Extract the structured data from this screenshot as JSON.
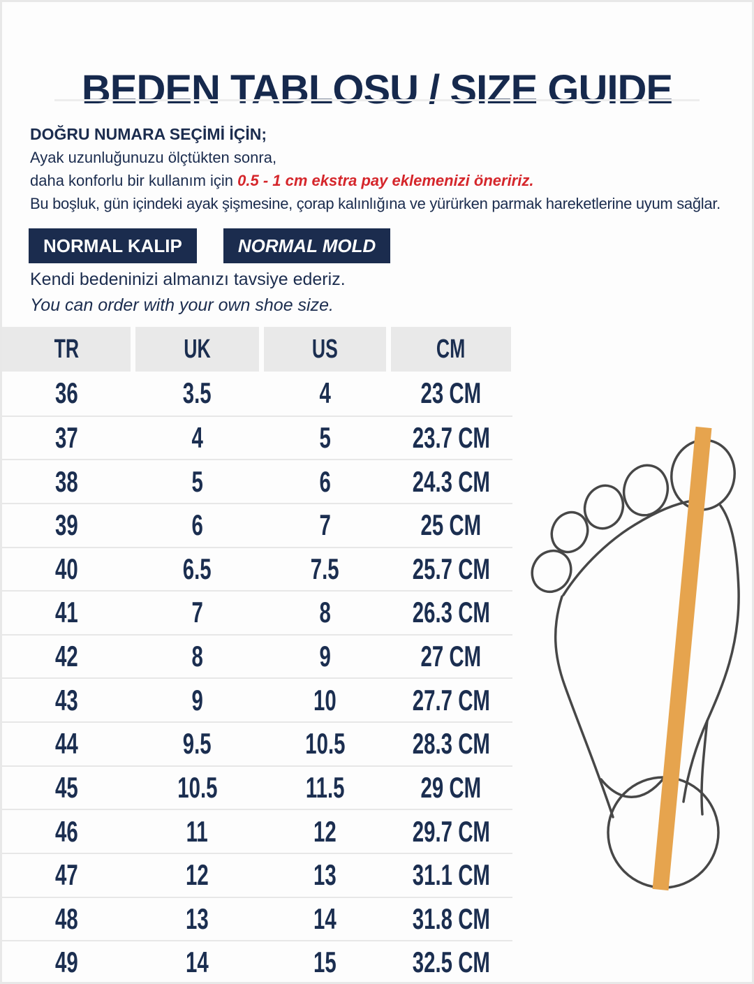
{
  "title": "BEDEN TABLOSU / SIZE GUIDE",
  "intro": {
    "heading": "DOĞRU NUMARA SEÇİMİ İÇİN;",
    "line1": "Ayak uzunluğunuzu ölçtükten sonra,",
    "line2_prefix": "daha konforlu bir kullanım için ",
    "line2_highlight": "0.5 - 1 cm ekstra pay eklemenizi öneririz.",
    "line3": "Bu boşluk, gün içindeki ayak şişmesine, çorap kalınlığına ve yürürken parmak hareketlerine uyum sağlar."
  },
  "fit_badges": {
    "tr": "NORMAL KALIP",
    "en": "NORMAL MOLD"
  },
  "advice": {
    "tr": "Kendi bedeninizi almanızı tavsiye ederiz.",
    "en": "You can order with your own shoe size."
  },
  "size_table": {
    "headers": [
      "TR",
      "UK",
      "US",
      "CM"
    ],
    "rows": [
      [
        "36",
        "3.5",
        "4",
        "23 CM"
      ],
      [
        "37",
        "4",
        "5",
        "23.7 CM"
      ],
      [
        "38",
        "5",
        "6",
        "24.3 CM"
      ],
      [
        "39",
        "6",
        "7",
        "25 CM"
      ],
      [
        "40",
        "6.5",
        "7.5",
        "25.7 CM"
      ],
      [
        "41",
        "7",
        "8",
        "26.3 CM"
      ],
      [
        "42",
        "8",
        "9",
        "27 CM"
      ],
      [
        "43",
        "9",
        "10",
        "27.7 CM"
      ],
      [
        "44",
        "9.5",
        "10.5",
        "28.3 CM"
      ],
      [
        "45",
        "10.5",
        "11.5",
        "29 CM"
      ],
      [
        "46",
        "11",
        "12",
        "29.7 CM"
      ],
      [
        "47",
        "12",
        "13",
        "31.1 CM"
      ],
      [
        "48",
        "13",
        "14",
        "31.8 CM"
      ],
      [
        "49",
        "14",
        "15",
        "32.5 CM"
      ]
    ]
  },
  "illustration": {
    "name": "foot-outline-with-measuring-stick",
    "outline_color": "#474747",
    "stick_color": "#e6a44e"
  },
  "colors": {
    "navy": "#1b2c4e",
    "red": "#d5262b",
    "header_cell_gray": "#e9e9e9",
    "row_divider_gray": "#e7e7e7",
    "frame_gray": "#e8e8e8"
  }
}
